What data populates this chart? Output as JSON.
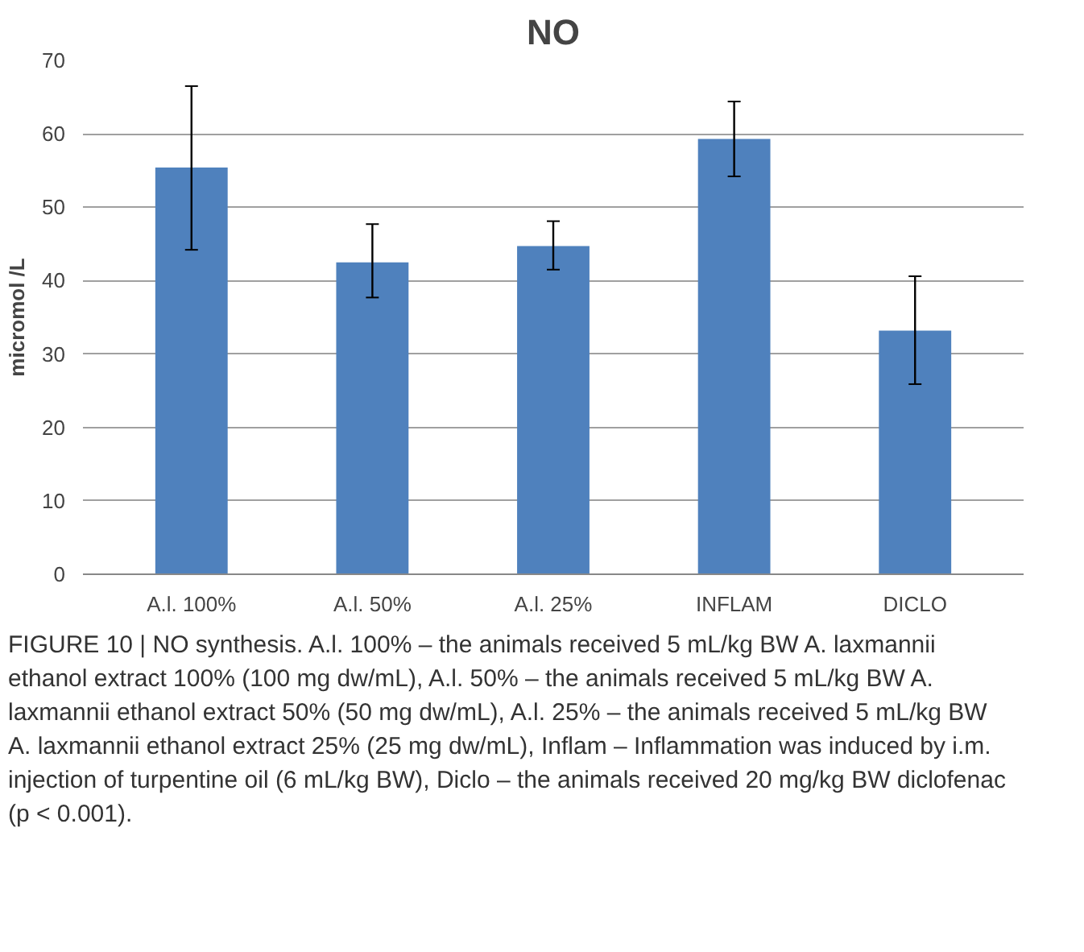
{
  "chart_data": {
    "type": "bar",
    "title": "NO",
    "ylabel": "micromol /L",
    "categories": [
      "A.l. 100%",
      "A.l. 50%",
      "A.l. 25%",
      "INFLAM",
      "DICLO"
    ],
    "values": [
      55.4,
      42.5,
      44.7,
      59.3,
      33.2
    ],
    "errors": [
      [
        44.2,
        66.5
      ],
      [
        37.7,
        47.7
      ],
      [
        41.5,
        48.1
      ],
      [
        54.2,
        64.4
      ],
      [
        25.9,
        40.6
      ]
    ],
    "color": "#4f81bd",
    "ylim": [
      0,
      70
    ],
    "yticks": [
      0,
      10,
      20,
      30,
      40,
      50,
      60,
      70
    ],
    "grid": "y",
    "annotations": [
      "FIGURE 10 | NO synthesis. A.l. 100% – the animals received 5 mL/kg BW A. laxmannii ethanol extract 100% (100 mg dw/mL), A.l. 50% – the animals received 5 mL/kg BW A. laxmannii ethanol extract 50% (50 mg dw/mL), A.l. 25% – the animals received 5 mL/kg BW A. laxmannii ethanol extract 25% (25 mg dw/mL), Inflam – Inflammation was induced by i.m. injection of turpentine oil (6 mL/kg BW), Diclo – the animals received 20 mg/kg BW diclofenac (p < 0.001)."
    ]
  }
}
